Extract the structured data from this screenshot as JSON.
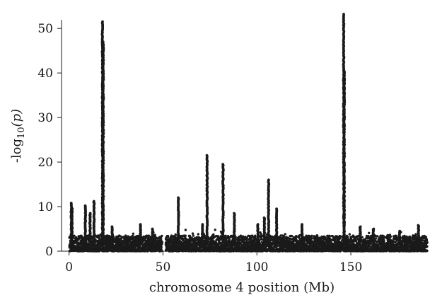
{
  "chart_data": {
    "type": "scatter",
    "xlabel": "chromosome 4 position (Mb)",
    "ylabel_main": "-log",
    "ylabel_sub": "10",
    "ylabel_arg": "(p)",
    "x_ticks": [
      "0",
      "50",
      "100",
      "150"
    ],
    "x_tick_values": [
      0,
      50,
      100,
      150
    ],
    "y_ticks": [
      "0",
      "10",
      "20",
      "30",
      "40",
      "50"
    ],
    "y_tick_values": [
      0,
      10,
      20,
      30,
      40,
      50
    ],
    "xlim": [
      -4,
      191
    ],
    "ylim": [
      0,
      54
    ],
    "grid": false,
    "point_color": "#1a1a1a",
    "baseline_max": 3.5,
    "gaps": [
      [
        49.5,
        51.5
      ]
    ],
    "peaks": [
      {
        "x": 1.2,
        "top": 10.8
      },
      {
        "x": 1.6,
        "top": 9.5
      },
      {
        "x": 8.7,
        "top": 10.2
      },
      {
        "x": 11.2,
        "top": 8.5
      },
      {
        "x": 13.3,
        "top": 11.2
      },
      {
        "x": 17.8,
        "top": 51.5
      },
      {
        "x": 18.2,
        "top": 47.0
      },
      {
        "x": 23.0,
        "top": 5.5
      },
      {
        "x": 38.0,
        "top": 6.0
      },
      {
        "x": 44.5,
        "top": 5.0
      },
      {
        "x": 58.2,
        "top": 12.0
      },
      {
        "x": 71.0,
        "top": 6.0
      },
      {
        "x": 73.5,
        "top": 21.5
      },
      {
        "x": 82.0,
        "top": 19.5
      },
      {
        "x": 88.0,
        "top": 8.5
      },
      {
        "x": 100.5,
        "top": 6.0
      },
      {
        "x": 104.0,
        "top": 7.5
      },
      {
        "x": 106.2,
        "top": 16.0
      },
      {
        "x": 110.5,
        "top": 9.5
      },
      {
        "x": 124.0,
        "top": 6.0
      },
      {
        "x": 146.2,
        "top": 53.2
      },
      {
        "x": 146.5,
        "top": 40.5
      },
      {
        "x": 155.0,
        "top": 5.5
      },
      {
        "x": 162.0,
        "top": 5.0
      },
      {
        "x": 176.0,
        "top": 4.5
      },
      {
        "x": 186.0,
        "top": 5.8
      }
    ]
  }
}
